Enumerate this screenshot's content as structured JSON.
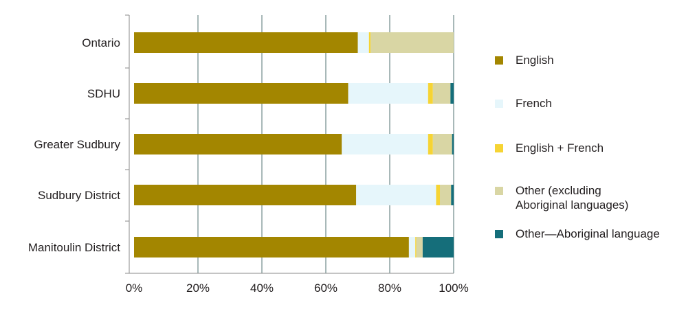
{
  "chart_data": {
    "type": "bar",
    "orientation": "horizontal",
    "stacked": true,
    "normalized": true,
    "categories": [
      "Ontario",
      "SDHU",
      "Greater Sudbury",
      "Sudbury District",
      "Manitoulin District"
    ],
    "series": [
      {
        "name": "English",
        "color": "#a38600",
        "values": [
          70,
          67,
          65,
          69.5,
          86
        ]
      },
      {
        "name": "French",
        "color": "#e6f6fb",
        "values": [
          3.5,
          25,
          27,
          25,
          2
        ]
      },
      {
        "name": "English + French",
        "color": "#f6d434",
        "values": [
          0.5,
          1.5,
          1.5,
          1.2,
          0.3
        ]
      },
      {
        "name": "Other (excluding\nAboriginal languages)",
        "color": "#d9d6a4",
        "values": [
          26,
          5.5,
          6,
          3.5,
          2
        ]
      },
      {
        "name": "Other—Aboriginal language",
        "color": "#156e7a",
        "values": [
          0,
          1,
          0.5,
          0.8,
          9.7
        ]
      }
    ],
    "xlim": [
      0,
      100
    ],
    "xticks": [
      "0%",
      "20%",
      "40%",
      "60%",
      "80%",
      "100%"
    ],
    "grid": "vertical",
    "legend_position": "right"
  }
}
